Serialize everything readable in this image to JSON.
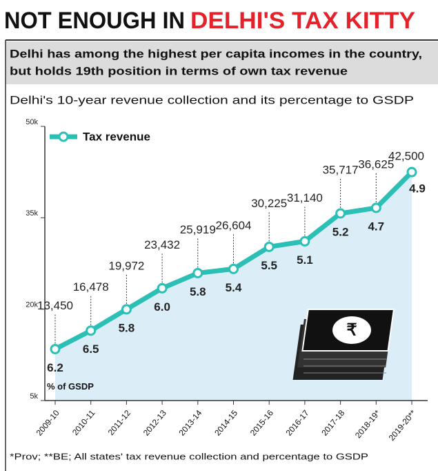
{
  "chart_data": {
    "type": "line",
    "title": [
      "NOT ENOUGH IN",
      "DELHI'S TAX KITTY"
    ],
    "subtitle": [
      "Delhi has among the highest per capita incomes in the country,",
      "but holds 19th position in terms of own tax revenue"
    ],
    "chart_title": "Delhi's 10-year revenue collection and its percentage to GSDP",
    "categories": [
      "2009-10",
      "2010-11",
      "2011-12",
      "2012-13",
      "2013-14",
      "2014-15",
      "2015-16",
      "2016-17",
      "2017-18",
      "2018-19*",
      "2019-20**"
    ],
    "series": [
      {
        "name": "Tax revenue",
        "color": "#2bbfb5",
        "values": [
          13450,
          16478,
          19972,
          23432,
          25919,
          26604,
          30225,
          31140,
          35717,
          36625,
          42500
        ],
        "value_labels": [
          "13,450",
          "16,478",
          "19,972",
          "23,432",
          "25,919",
          "26,604",
          "30,225",
          "31,140",
          "35,717",
          "36,625",
          "42,500"
        ]
      }
    ],
    "gsdp_percent": {
      "label": "% of GSDP",
      "values": [
        6.2,
        6.5,
        5.8,
        6.0,
        5.8,
        5.4,
        5.5,
        5.1,
        5.2,
        4.7,
        4.9
      ],
      "value_labels": [
        "6.2",
        "6.5",
        "5.8",
        "6.0",
        "5.8",
        "5.4",
        "5.5",
        "5.1",
        "5.2",
        "4.7",
        "4.9"
      ]
    },
    "ylim": [
      5000,
      50000
    ],
    "yticks": [
      {
        "value": 5000,
        "label": "5k"
      },
      {
        "value": 20000,
        "label": "20k"
      },
      {
        "value": 35000,
        "label": "35k"
      },
      {
        "value": 50000,
        "label": "50k"
      }
    ],
    "area_color": "#dbeef8",
    "footnote": "*Prov; **BE; All states' tax revenue collection and percentage to GSDP"
  }
}
